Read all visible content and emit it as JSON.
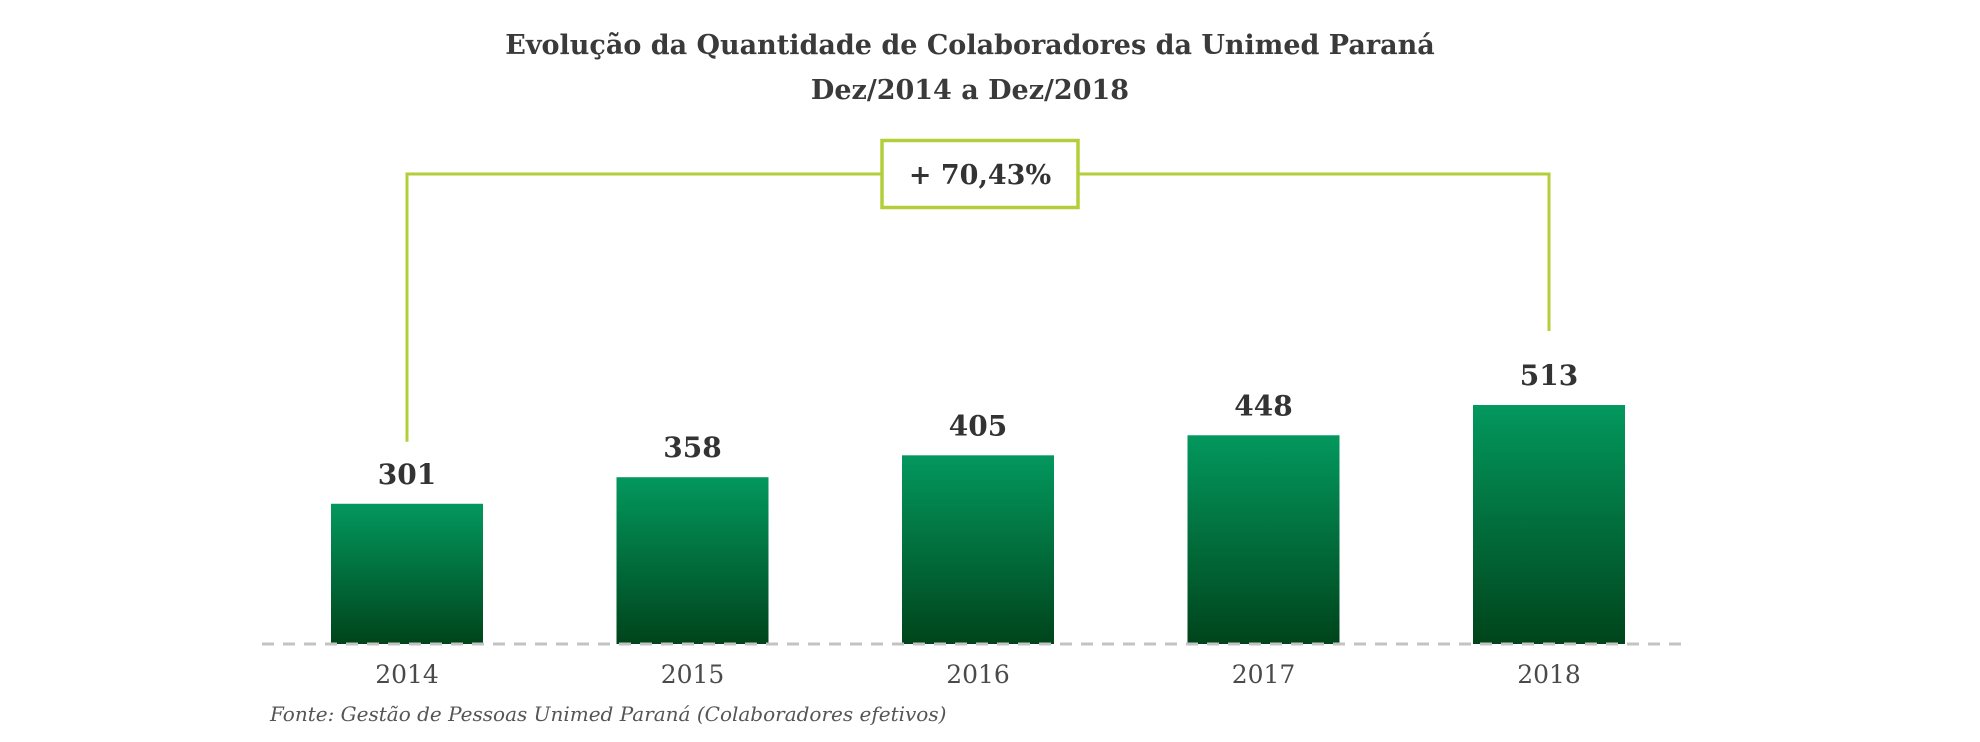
{
  "chart_data": {
    "type": "bar",
    "title": "Evolução da Quantidade de Colaboradores da Unimed Paraná",
    "subtitle": "Dez/2014 a Dez/2018",
    "categories": [
      "2014",
      "2015",
      "2016",
      "2017",
      "2018"
    ],
    "values": [
      301,
      358,
      405,
      448,
      513
    ],
    "value_labels": [
      "301",
      "358",
      "405",
      "448",
      "513"
    ],
    "ylim": [
      0,
      513
    ],
    "grid": false,
    "legend": "none",
    "annotation": {
      "text": "+ 70,43%",
      "from": "2014",
      "to": "2018"
    },
    "source": "Fonte: Gestão de Pessoas Unimed Paraná (Colaboradores efetivos)",
    "colors": {
      "bar_top": "#03985e",
      "bar_bottom": "#00441b",
      "bracket": "#b2cf3a",
      "baseline": "#c3c3c3"
    }
  }
}
